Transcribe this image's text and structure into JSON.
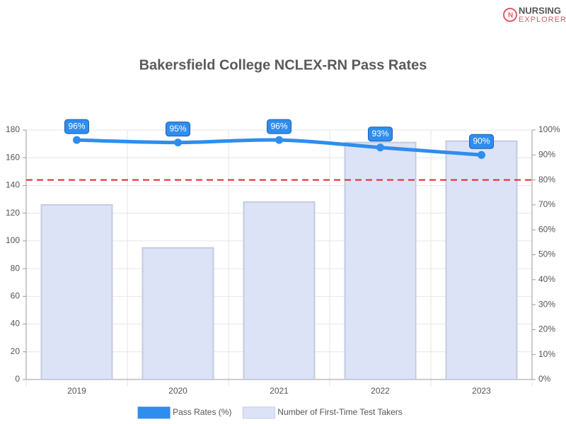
{
  "logo": {
    "line1": "NURSING",
    "line2": "EXPLORER"
  },
  "chart_data": {
    "type": "bar",
    "title": "Bakersfield College NCLEX-RN Pass Rates",
    "categories": [
      "2019",
      "2020",
      "2021",
      "2022",
      "2023"
    ],
    "series": [
      {
        "name": "Pass Rates (%)",
        "type": "line",
        "axis": "y2",
        "color": "#2f8ded",
        "values": [
          96,
          95,
          96,
          93,
          90
        ],
        "value_labels": [
          "96%",
          "95%",
          "96%",
          "93%",
          "90%"
        ]
      },
      {
        "name": "Number of First-Time Test Takers",
        "type": "bar",
        "color": "#dce3f7",
        "values": [
          126,
          95,
          128,
          171,
          172
        ]
      }
    ],
    "ylim": [
      0,
      180
    ],
    "yticks": [
      0,
      20,
      40,
      60,
      80,
      100,
      120,
      140,
      160,
      180
    ],
    "y2lim": [
      0,
      100
    ],
    "y2ticks": [
      {
        "value": 0,
        "label": "0%"
      },
      {
        "value": 10,
        "label": "10%"
      },
      {
        "value": 20,
        "label": "20%"
      },
      {
        "value": 30,
        "label": "30%"
      },
      {
        "value": 40,
        "label": "40%"
      },
      {
        "value": 50,
        "label": "50%"
      },
      {
        "value": 60,
        "label": "60%"
      },
      {
        "value": 70,
        "label": "70%"
      },
      {
        "value": 80,
        "label": "80%"
      },
      {
        "value": 90,
        "label": "90%"
      },
      {
        "value": 100,
        "label": "100%"
      }
    ],
    "reference_line": {
      "value": 80,
      "axis": "y2",
      "color": "#e3262b"
    },
    "grid": true,
    "legend": "bottom"
  }
}
